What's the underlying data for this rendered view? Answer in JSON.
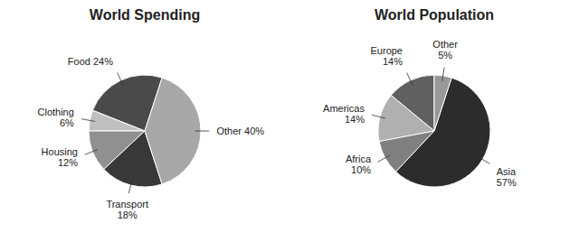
{
  "chart_data": [
    {
      "type": "pie",
      "title": "World Spending",
      "categories": [
        "Food 24%",
        "Clothing\n6%",
        "Housing\n12%",
        "Transport\n18%",
        "Other 40%"
      ],
      "values": [
        24,
        6,
        12,
        18,
        40
      ],
      "colors": [
        "#4a4a4a",
        "#c0c0c0",
        "#909090",
        "#383838",
        "#a8a8a8"
      ]
    },
    {
      "type": "pie",
      "title": "World Population",
      "categories": [
        "Europe\n14%",
        "Americas\n14%",
        "Africa\n10%",
        "Asia\n57%",
        "Other\n5%"
      ],
      "values": [
        14,
        14,
        10,
        57,
        5
      ],
      "colors": [
        "#606060",
        "#b0b0b0",
        "#808080",
        "#2c2c2c",
        "#989898"
      ]
    }
  ]
}
